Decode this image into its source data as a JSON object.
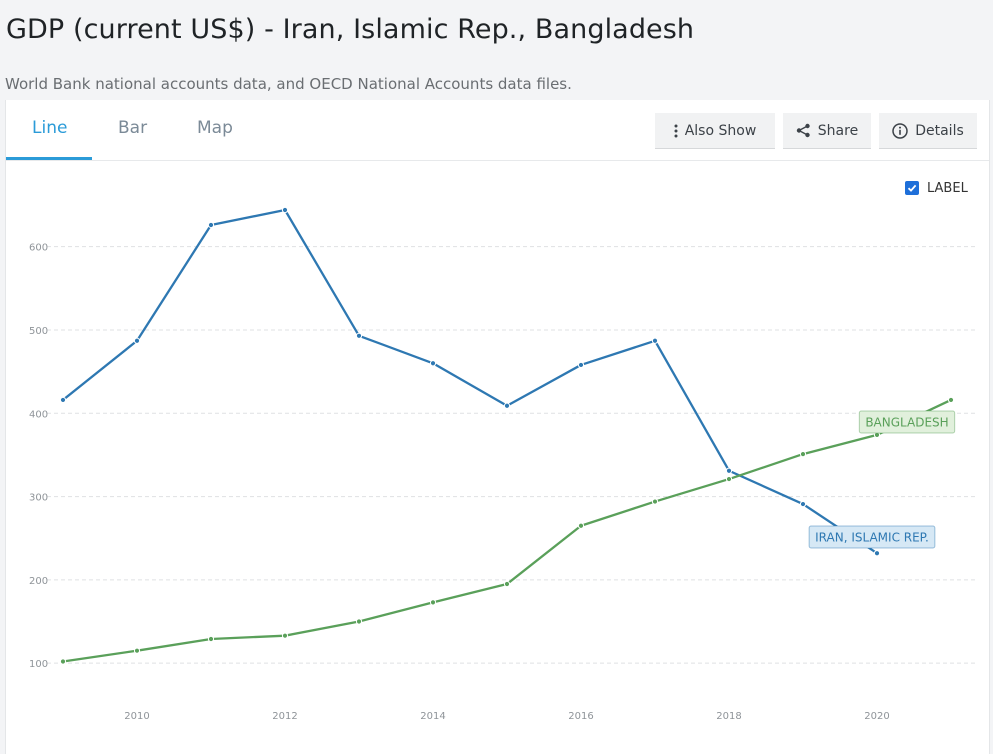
{
  "header": {
    "title": "GDP (current US$) - Iran, Islamic Rep., Bangladesh",
    "subtitle": "World Bank national accounts data, and OECD National Accounts data files."
  },
  "tabs": [
    {
      "label": "Line",
      "active": true
    },
    {
      "label": "Bar",
      "active": false
    },
    {
      "label": "Map",
      "active": false
    }
  ],
  "toolbar": {
    "also_show": {
      "label": "Also Show",
      "icon": "vertical-dots-icon"
    },
    "share": {
      "label": "Share",
      "icon": "share-icon"
    },
    "details": {
      "label": "Details",
      "icon": "info-icon"
    }
  },
  "label_toggle": {
    "label": "LABEL",
    "checked": true
  },
  "chart_data": {
    "type": "line",
    "x": [
      2009,
      2010,
      2011,
      2012,
      2013,
      2014,
      2015,
      2016,
      2017,
      2018,
      2019,
      2020,
      2021
    ],
    "x_ticks": [
      "2010",
      "2012",
      "2014",
      "2016",
      "2018",
      "2020"
    ],
    "y_ticks": [
      "100",
      "200",
      "300",
      "400",
      "500",
      "600"
    ],
    "ylim": [
      75,
      650
    ],
    "grid": true,
    "series": [
      {
        "name": "IRAN, ISLAMIC REP.",
        "color": "#2e78b2",
        "tag_fill": "#d6e8f5",
        "values": [
          416,
          487,
          626,
          644,
          493,
          460,
          409,
          458,
          487,
          331,
          291,
          232,
          null
        ]
      },
      {
        "name": "BANGLADESH",
        "color": "#5aa05a",
        "tag_fill": "#e1f0dc",
        "values": [
          102,
          115,
          129,
          133,
          150,
          173,
          195,
          265,
          294,
          321,
          351,
          374,
          416
        ]
      }
    ]
  }
}
